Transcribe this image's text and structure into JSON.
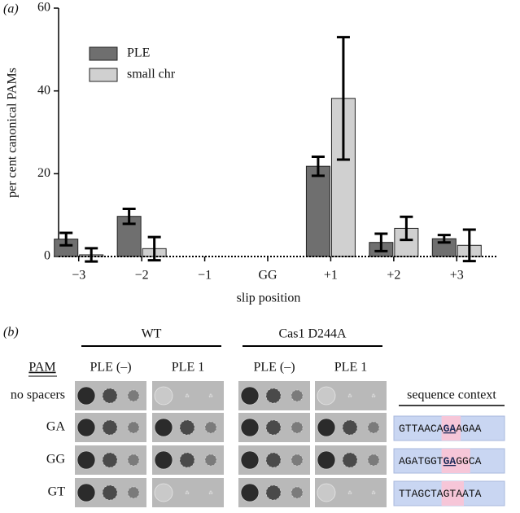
{
  "chart_data": {
    "type": "bar",
    "label": "(a)",
    "ylabel": "per cent canonical PAMs",
    "xlabel": "slip position",
    "categories": [
      "−3",
      "−2",
      "−1",
      "GG",
      "+1",
      "+2",
      "+3"
    ],
    "series": [
      {
        "name": "PLE",
        "color": "#6f6f6f",
        "values": [
          4.2,
          9.7,
          null,
          null,
          21.8,
          3.4,
          4.3
        ],
        "errors": [
          1.5,
          1.8,
          null,
          null,
          2.3,
          2.1,
          0.9
        ]
      },
      {
        "name": "small chr",
        "color": "#d0d0d0",
        "values": [
          0.4,
          1.9,
          null,
          null,
          38.2,
          6.8,
          2.7
        ],
        "errors": [
          1.6,
          2.8,
          null,
          null,
          14.8,
          2.8,
          3.8
        ]
      }
    ],
    "ylim": [
      0,
      60
    ],
    "yticks": [
      0,
      20,
      40,
      60
    ],
    "legend": "upper-left"
  },
  "panel_b": {
    "label": "(b)",
    "groups": [
      "WT",
      "Cas1 D244A"
    ],
    "columns": [
      "PLE (–)",
      "PLE 1",
      "PLE (–)",
      "PLE 1"
    ],
    "row_header": "PAM",
    "rows": [
      "no spacers",
      "GA",
      "GG",
      "GT"
    ],
    "context_header": "sequence context",
    "sequences": [
      [
        "GTTAACA",
        "GA",
        "AGAA"
      ],
      [
        "AGATGGT",
        "GA",
        "GGCA"
      ],
      [
        "TTAGCTA",
        "GT",
        "AATA"
      ]
    ]
  }
}
